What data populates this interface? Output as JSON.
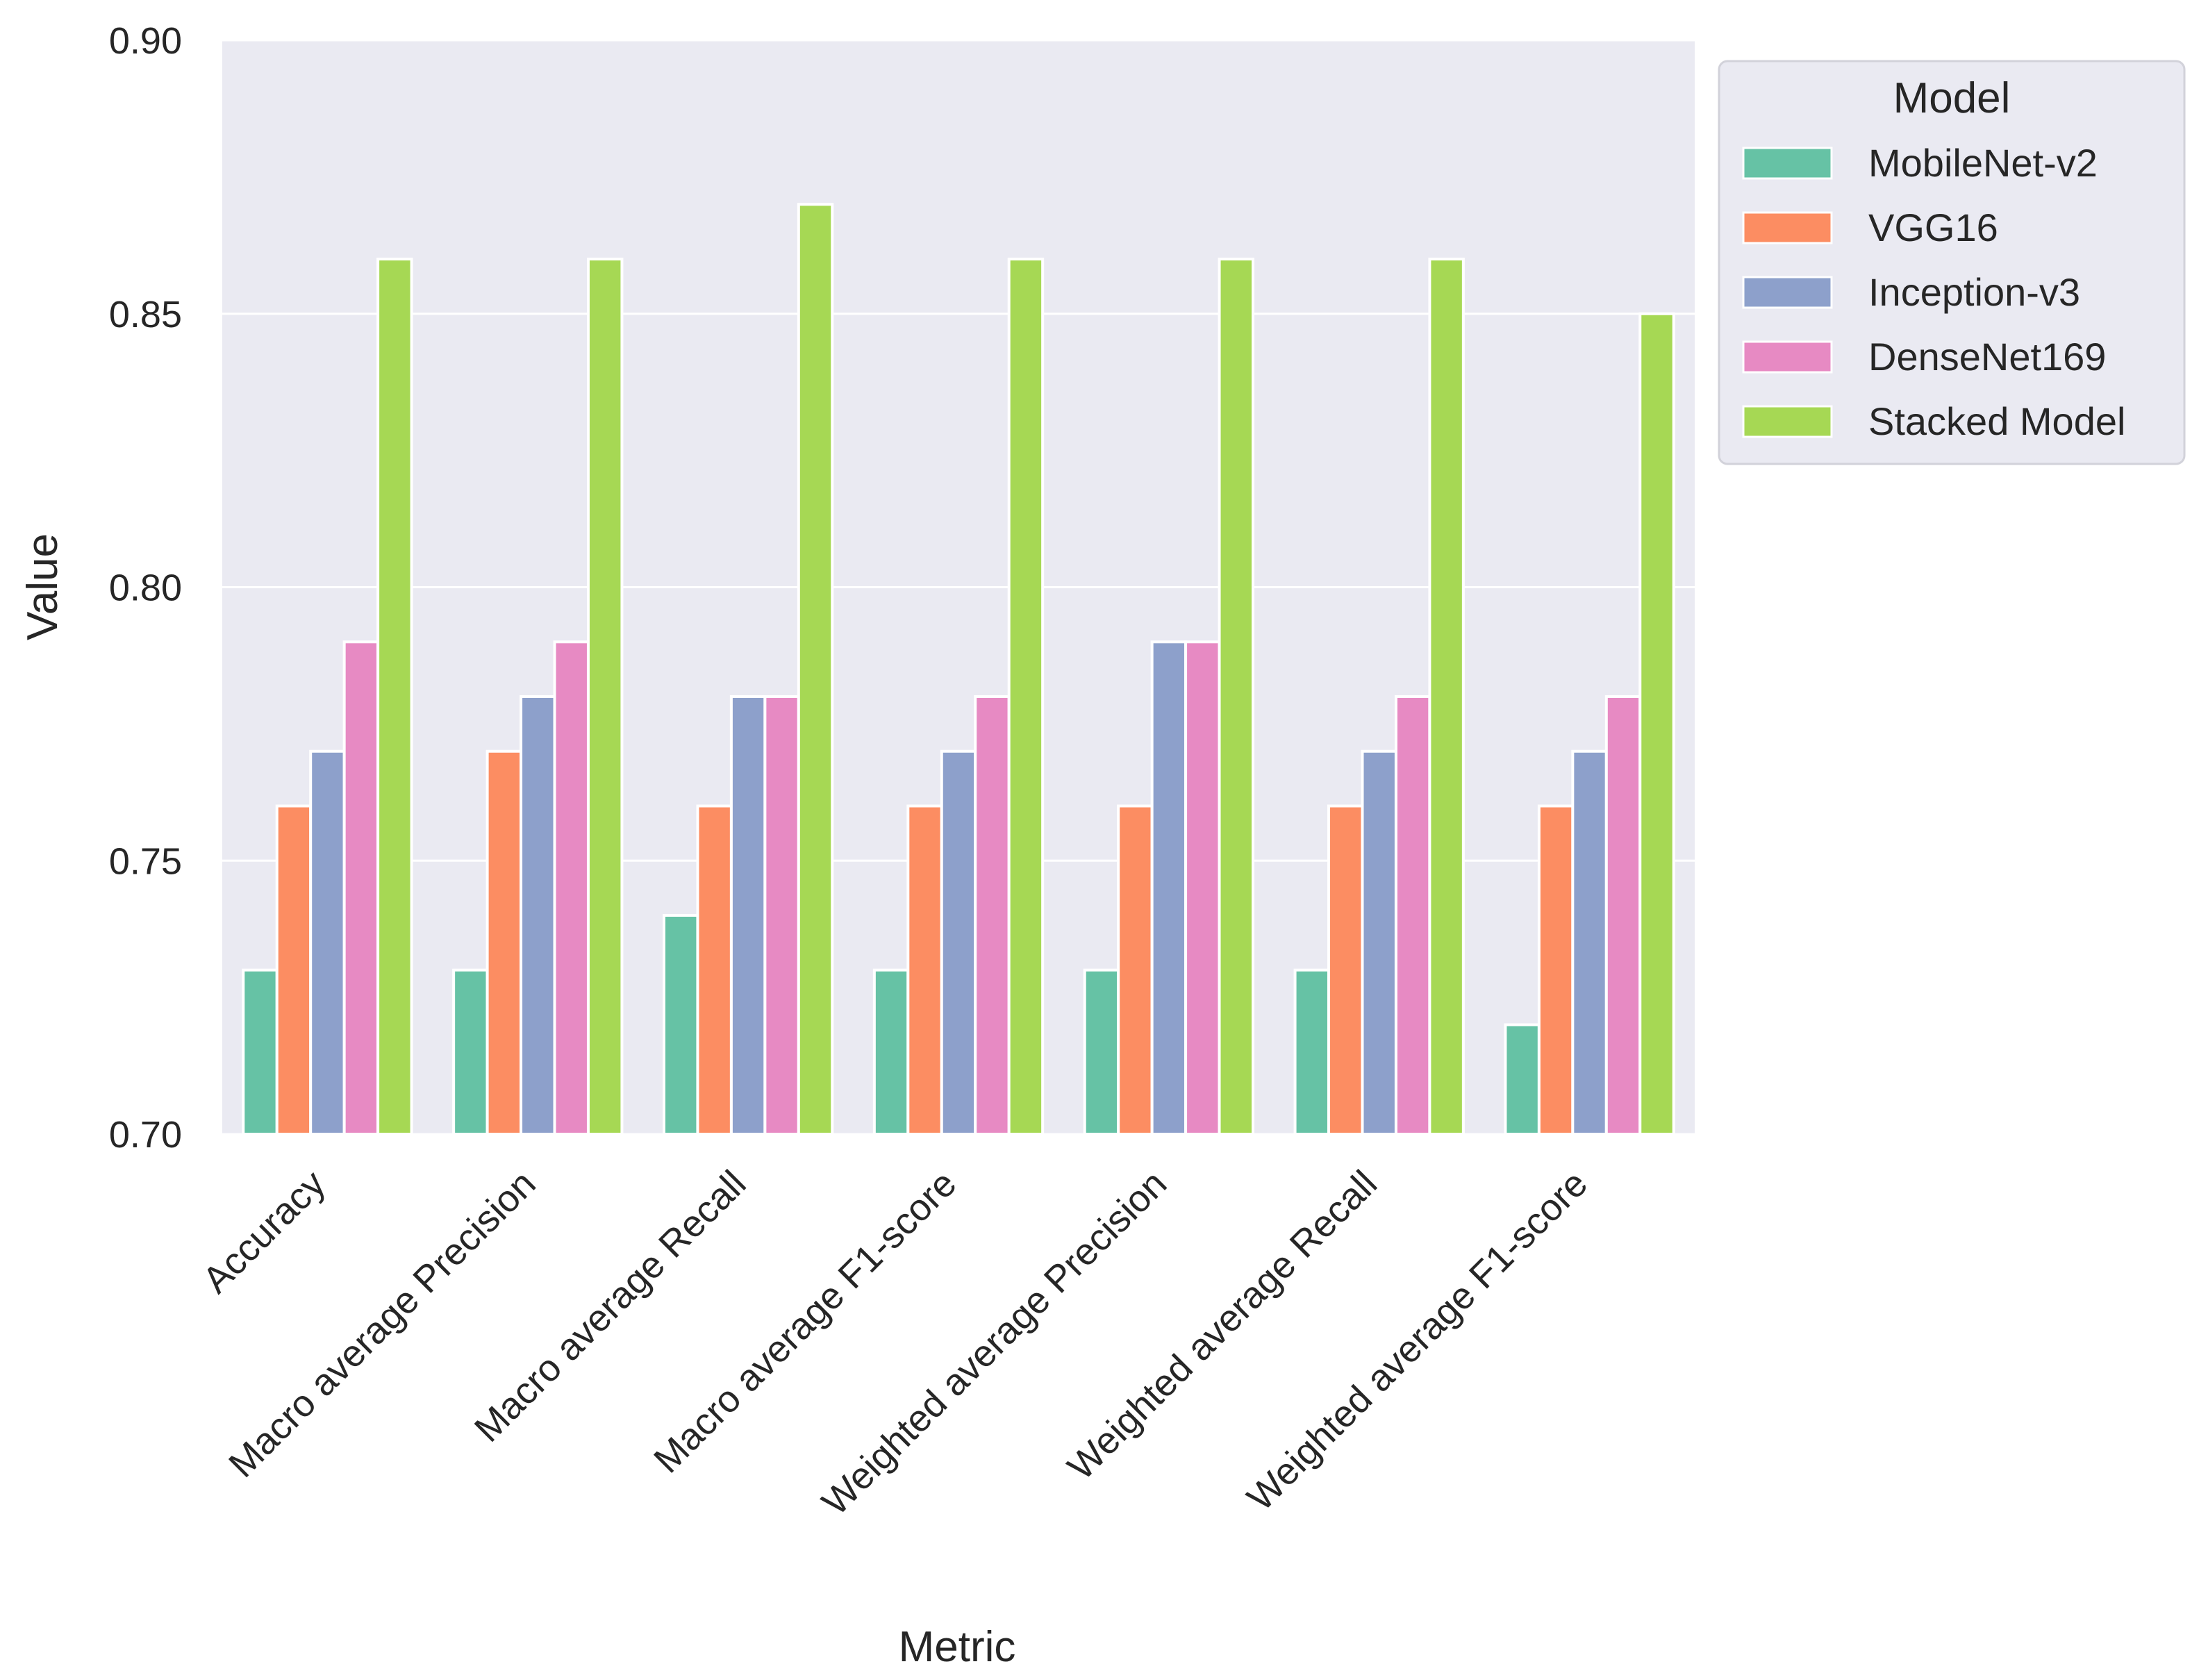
{
  "chart_data": {
    "type": "bar",
    "title": "",
    "xlabel": "Metric",
    "ylabel": "Value",
    "ylim": [
      0.7,
      0.9
    ],
    "yticks": [
      "0.70",
      "0.75",
      "0.80",
      "0.85",
      "0.90"
    ],
    "grid": true,
    "legend_title": "Model",
    "legend_position": "outside-top-right",
    "categories": [
      "Accuracy",
      "Macro average Precision",
      "Macro average Recall",
      "Macro average F1-score",
      "Weighted average Precision",
      "Weighted average Recall",
      "Weighted average F1-score"
    ],
    "series": [
      {
        "name": "MobileNet-v2",
        "color": "#66c2a5",
        "values": [
          0.73,
          0.73,
          0.74,
          0.73,
          0.73,
          0.73,
          0.72
        ]
      },
      {
        "name": "VGG16",
        "color": "#fc8d62",
        "values": [
          0.76,
          0.77,
          0.76,
          0.76,
          0.76,
          0.76,
          0.76
        ]
      },
      {
        "name": "Inception-v3",
        "color": "#8da0cb",
        "values": [
          0.77,
          0.78,
          0.78,
          0.77,
          0.79,
          0.77,
          0.77
        ]
      },
      {
        "name": "DenseNet169",
        "color": "#e78ac3",
        "values": [
          0.79,
          0.79,
          0.78,
          0.78,
          0.79,
          0.78,
          0.78
        ]
      },
      {
        "name": "Stacked Model",
        "color": "#a6d854",
        "values": [
          0.86,
          0.86,
          0.87,
          0.86,
          0.86,
          0.86,
          0.85
        ]
      }
    ]
  }
}
